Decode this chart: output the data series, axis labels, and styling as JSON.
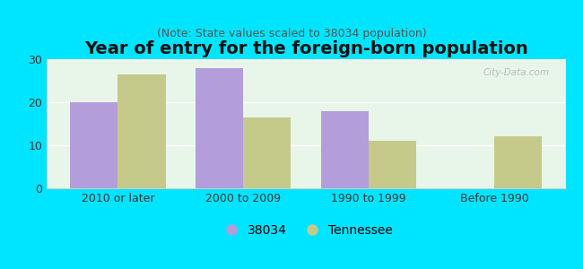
{
  "title": "Year of entry for the foreign-born population",
  "subtitle": "(Note: State values scaled to 38034 population)",
  "categories": [
    "2010 or later",
    "2000 to 2009",
    "1990 to 1999",
    "Before 1990"
  ],
  "values_38034": [
    20,
    28,
    18,
    0
  ],
  "values_tennessee": [
    26.5,
    16.5,
    11,
    12
  ],
  "bar_color_38034": "#b39ddb",
  "bar_color_tennessee": "#c5c98a",
  "background_color": "#00e5ff",
  "plot_bg_color": "#e8f5e9",
  "ylim": [
    0,
    30
  ],
  "yticks": [
    0,
    10,
    20,
    30
  ],
  "bar_width": 0.38,
  "legend_label_38034": "38034",
  "legend_label_tennessee": "Tennessee",
  "title_fontsize": 14,
  "subtitle_fontsize": 9,
  "axis_label_fontsize": 9,
  "legend_fontsize": 10
}
